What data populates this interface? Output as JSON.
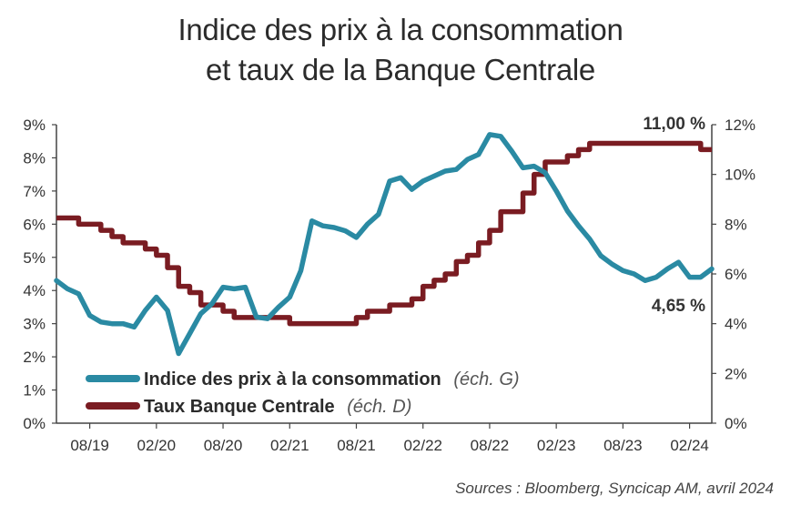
{
  "title_line1": "Indice des prix à la consommation",
  "title_line2": "et taux de la Banque Centrale",
  "source": "Sources : Bloomberg, Syncicap AM, avril 2024",
  "colors": {
    "cpi": "#2a8aa3",
    "rate": "#7a1c22",
    "axis": "#444444"
  },
  "chart_data": {
    "type": "line",
    "x_ticks": [
      "08/19",
      "02/20",
      "08/20",
      "02/21",
      "08/21",
      "02/22",
      "08/22",
      "02/23",
      "08/23",
      "02/24"
    ],
    "x_range": [
      "2019-05",
      "2024-04"
    ],
    "y_left": {
      "ticks": [
        "0%",
        "1%",
        "2%",
        "3%",
        "4%",
        "5%",
        "6%",
        "7%",
        "8%",
        "9%"
      ],
      "range": [
        0,
        9
      ]
    },
    "y_right": {
      "ticks": [
        "0%",
        "2%",
        "4%",
        "6%",
        "8%",
        "10%",
        "12%"
      ],
      "range": [
        0,
        12
      ]
    },
    "grid": false,
    "legend_position": "bottom-left",
    "annotations": {
      "rate_last": "11,00 %",
      "cpi_last": "4,65 %"
    },
    "series": [
      {
        "name": "Indice des prix à la consommation",
        "note": "(éch. G)",
        "axis": "left",
        "x": [
          "2019-05",
          "2019-06",
          "2019-07",
          "2019-08",
          "2019-09",
          "2019-10",
          "2019-11",
          "2019-12",
          "2020-01",
          "2020-02",
          "2020-03",
          "2020-04",
          "2020-05",
          "2020-06",
          "2020-07",
          "2020-08",
          "2020-09",
          "2020-10",
          "2020-11",
          "2020-12",
          "2021-01",
          "2021-02",
          "2021-03",
          "2021-04",
          "2021-05",
          "2021-06",
          "2021-07",
          "2021-08",
          "2021-09",
          "2021-10",
          "2021-11",
          "2021-12",
          "2022-01",
          "2022-02",
          "2022-03",
          "2022-04",
          "2022-05",
          "2022-06",
          "2022-07",
          "2022-08",
          "2022-09",
          "2022-10",
          "2022-11",
          "2022-12",
          "2023-01",
          "2023-02",
          "2023-03",
          "2023-04",
          "2023-05",
          "2023-06",
          "2023-07",
          "2023-08",
          "2023-09",
          "2023-10",
          "2023-11",
          "2023-12",
          "2024-01",
          "2024-02",
          "2024-03",
          "2024-04"
        ],
        "values": [
          4.3,
          4.05,
          3.9,
          3.25,
          3.05,
          3.0,
          3.0,
          2.9,
          3.4,
          3.8,
          3.4,
          2.1,
          2.7,
          3.3,
          3.6,
          4.1,
          4.05,
          4.1,
          3.2,
          3.15,
          3.5,
          3.8,
          4.6,
          6.1,
          5.95,
          5.9,
          5.8,
          5.6,
          6.0,
          6.3,
          7.3,
          7.4,
          7.05,
          7.3,
          7.45,
          7.6,
          7.65,
          7.95,
          8.1,
          8.7,
          8.65,
          8.2,
          7.7,
          7.75,
          7.55,
          7.0,
          6.4,
          5.95,
          5.55,
          5.05,
          4.8,
          4.6,
          4.5,
          4.3,
          4.4,
          4.65,
          4.85,
          4.4,
          4.4,
          4.65
        ]
      },
      {
        "name": "Taux Banque Centrale",
        "note": "(éch. D)",
        "axis": "right",
        "x": [
          "2019-05",
          "2019-06",
          "2019-07",
          "2019-08",
          "2019-09",
          "2019-10",
          "2019-11",
          "2019-12",
          "2020-01",
          "2020-02",
          "2020-03",
          "2020-04",
          "2020-05",
          "2020-06",
          "2020-07",
          "2020-08",
          "2020-09",
          "2020-10",
          "2020-11",
          "2020-12",
          "2021-01",
          "2021-02",
          "2021-03",
          "2021-04",
          "2021-05",
          "2021-06",
          "2021-07",
          "2021-08",
          "2021-09",
          "2021-10",
          "2021-11",
          "2021-12",
          "2022-01",
          "2022-02",
          "2022-03",
          "2022-04",
          "2022-05",
          "2022-06",
          "2022-07",
          "2022-08",
          "2022-09",
          "2022-10",
          "2022-11",
          "2022-12",
          "2023-01",
          "2023-02",
          "2023-03",
          "2023-04",
          "2023-05",
          "2023-06",
          "2023-07",
          "2023-08",
          "2023-09",
          "2023-10",
          "2023-11",
          "2023-12",
          "2024-01",
          "2024-02",
          "2024-03",
          "2024-04"
        ],
        "values": [
          8.25,
          8.25,
          8.0,
          8.0,
          7.75,
          7.5,
          7.25,
          7.25,
          7.0,
          6.75,
          6.25,
          5.5,
          5.25,
          4.75,
          4.75,
          4.5,
          4.25,
          4.25,
          4.25,
          4.25,
          4.25,
          4.0,
          4.0,
          4.0,
          4.0,
          4.0,
          4.0,
          4.25,
          4.5,
          4.5,
          4.75,
          4.75,
          5.0,
          5.5,
          5.75,
          6.0,
          6.5,
          6.75,
          7.25,
          7.75,
          8.5,
          8.5,
          9.25,
          10.0,
          10.5,
          10.5,
          10.75,
          11.0,
          11.25,
          11.25,
          11.25,
          11.25,
          11.25,
          11.25,
          11.25,
          11.25,
          11.25,
          11.25,
          11.0,
          11.0
        ]
      }
    ]
  }
}
